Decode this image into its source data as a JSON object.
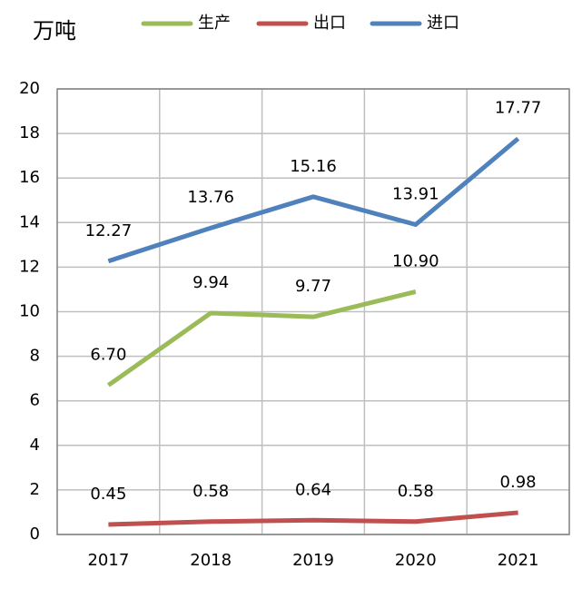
{
  "chart_data": {
    "type": "line",
    "unit_label": "万吨",
    "categories": [
      "2017",
      "2018",
      "2019",
      "2020",
      "2021"
    ],
    "series": [
      {
        "name": "生产",
        "color": "#9bbb59",
        "values": [
          6.7,
          9.94,
          9.77,
          10.9,
          null
        ],
        "value_labels": [
          "6.70",
          "9.94",
          "9.77",
          "10.90",
          null
        ]
      },
      {
        "name": "出口",
        "color": "#c0504d",
        "values": [
          0.45,
          0.58,
          0.64,
          0.58,
          0.98
        ],
        "value_labels": [
          "0.45",
          "0.58",
          "0.64",
          "0.58",
          "0.98"
        ]
      },
      {
        "name": "进口",
        "color": "#4f81bd",
        "values": [
          12.27,
          13.76,
          15.16,
          13.91,
          17.77
        ],
        "value_labels": [
          "12.27",
          "13.76",
          "15.16",
          "13.91",
          "17.77"
        ]
      }
    ],
    "ylim": [
      0,
      20
    ],
    "yticks": [
      0,
      2,
      4,
      6,
      8,
      10,
      12,
      14,
      16,
      18,
      20
    ],
    "grid": true,
    "legend": "top"
  }
}
